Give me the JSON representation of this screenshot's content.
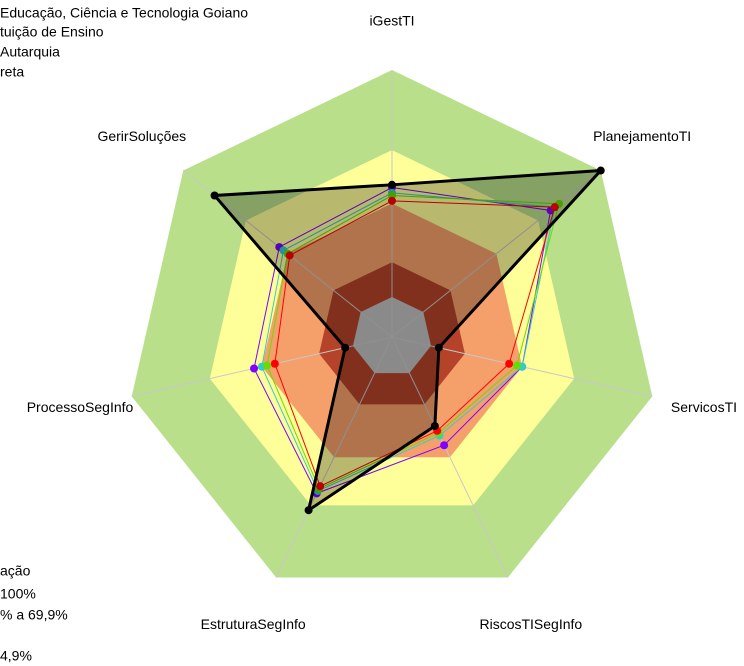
{
  "chart_data": {
    "type": "radar",
    "categories": [
      "iGestTI",
      "PlanejamentoTI",
      "ServicosTI",
      "RiscosTISegInfo",
      "EstruturaSegInfo",
      "ProcessoSegInfo",
      "GerirSoluções"
    ],
    "rlim": [
      0,
      100
    ],
    "bands": [
      {
        "to": 100,
        "color": "#b9df8a"
      },
      {
        "to": 70,
        "color": "#ffff99"
      },
      {
        "to": 50,
        "color": "#f5a06a"
      },
      {
        "to": 28,
        "color": "#b5432a"
      },
      {
        "to": 15,
        "color": "#c0c0c0"
      }
    ],
    "series": [
      {
        "color": "#8000ff",
        "values": [
          56,
          76,
          50,
          45,
          65,
          53,
          54
        ]
      },
      {
        "name": "reta",
        "color": "#33cccc",
        "values": [
          54,
          78,
          50,
          41,
          64,
          50,
          52
        ]
      },
      {
        "name": "Autarquia",
        "color": "#66dd00",
        "values": [
          53,
          80,
          48,
          40,
          63,
          48,
          50
        ]
      },
      {
        "name": "tuição de Ensino",
        "color": "#ff0000",
        "values": [
          51,
          78,
          45,
          39,
          62,
          45,
          49
        ]
      },
      {
        "name": "Educação, Ciência e Tecnologia Goiano",
        "color": "#000000",
        "fill": true,
        "values": [
          57,
          100,
          18,
          37,
          72,
          18,
          85
        ]
      }
    ],
    "band_legend": {
      "title": "ação",
      "items": [
        "100%",
        "% a 69,9%",
        "4,9%"
      ]
    }
  }
}
